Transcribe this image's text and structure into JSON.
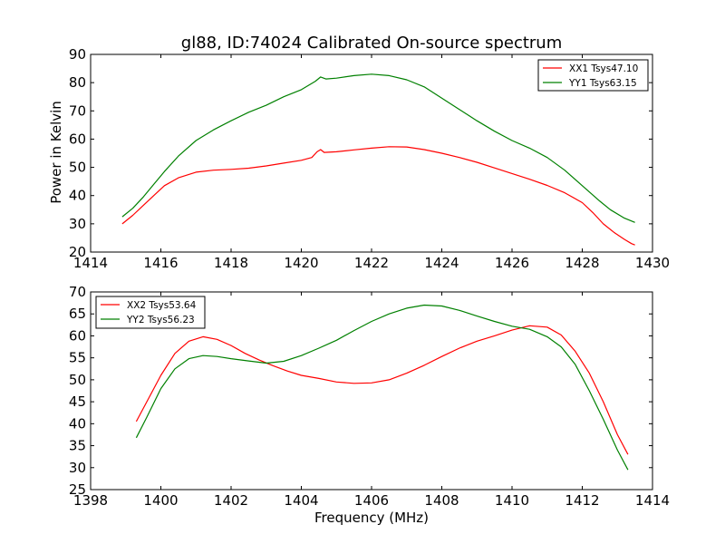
{
  "figure": {
    "title": "gl88, ID:74024 Calibrated On-source spectrum",
    "ylabel": "Power in Kelvin",
    "xlabel": "Frequency (MHz)"
  },
  "chart_data": [
    {
      "type": "line",
      "title": "gl88, ID:74024 Calibrated On-source spectrum",
      "ylabel": "Power in Kelvin",
      "xlim": [
        1414,
        1430
      ],
      "ylim": [
        20,
        90
      ],
      "xticks": [
        1414,
        1416,
        1418,
        1420,
        1422,
        1424,
        1426,
        1428,
        1430
      ],
      "yticks": [
        20,
        30,
        40,
        50,
        60,
        70,
        80,
        90
      ],
      "grid": false,
      "legend": "top-right",
      "series": [
        {
          "name": "XX1 Tsys47.10",
          "color": "#ff0000",
          "points": [
            [
              1414.9,
              30
            ],
            [
              1415.2,
              33
            ],
            [
              1415.5,
              36.5
            ],
            [
              1415.8,
              40
            ],
            [
              1416.1,
              43.5
            ],
            [
              1416.5,
              46.3
            ],
            [
              1417,
              48.3
            ],
            [
              1417.5,
              49
            ],
            [
              1418,
              49.3
            ],
            [
              1418.5,
              49.7
            ],
            [
              1419,
              50.5
            ],
            [
              1419.5,
              51.5
            ],
            [
              1420,
              52.5
            ],
            [
              1420.3,
              53.5
            ],
            [
              1420.45,
              55.5
            ],
            [
              1420.55,
              56.3
            ],
            [
              1420.65,
              55.3
            ],
            [
              1421,
              55.5
            ],
            [
              1421.5,
              56.2
            ],
            [
              1422,
              56.8
            ],
            [
              1422.5,
              57.3
            ],
            [
              1423,
              57.2
            ],
            [
              1423.5,
              56.3
            ],
            [
              1424,
              55
            ],
            [
              1424.5,
              53.5
            ],
            [
              1425,
              51.8
            ],
            [
              1425.5,
              49.8
            ],
            [
              1426,
              47.8
            ],
            [
              1426.5,
              45.8
            ],
            [
              1427,
              43.6
            ],
            [
              1427.5,
              41
            ],
            [
              1428,
              37.5
            ],
            [
              1428.3,
              34
            ],
            [
              1428.6,
              30
            ],
            [
              1428.9,
              27
            ],
            [
              1429.2,
              24.5
            ],
            [
              1429.4,
              23
            ],
            [
              1429.5,
              22.5
            ]
          ]
        },
        {
          "name": "YY1 Tsys63.15",
          "color": "#008000",
          "points": [
            [
              1414.9,
              32.5
            ],
            [
              1415.2,
              35.5
            ],
            [
              1415.5,
              39.5
            ],
            [
              1415.8,
              44
            ],
            [
              1416.1,
              48.5
            ],
            [
              1416.5,
              54
            ],
            [
              1417,
              59.5
            ],
            [
              1417.5,
              63.3
            ],
            [
              1418,
              66.5
            ],
            [
              1418.5,
              69.5
            ],
            [
              1419,
              72
            ],
            [
              1419.5,
              75
            ],
            [
              1420,
              77.5
            ],
            [
              1420.4,
              80.5
            ],
            [
              1420.55,
              82
            ],
            [
              1420.7,
              81.3
            ],
            [
              1421,
              81.6
            ],
            [
              1421.5,
              82.5
            ],
            [
              1422,
              83
            ],
            [
              1422.5,
              82.5
            ],
            [
              1423,
              81
            ],
            [
              1423.5,
              78.5
            ],
            [
              1424,
              74.5
            ],
            [
              1424.5,
              70.5
            ],
            [
              1425,
              66.5
            ],
            [
              1425.5,
              62.8
            ],
            [
              1426,
              59.5
            ],
            [
              1426.5,
              56.8
            ],
            [
              1427,
              53.5
            ],
            [
              1427.5,
              49
            ],
            [
              1428,
              43.5
            ],
            [
              1428.5,
              38
            ],
            [
              1428.8,
              35
            ],
            [
              1429.2,
              32
            ],
            [
              1429.5,
              30.5
            ]
          ]
        }
      ]
    },
    {
      "type": "line",
      "xlabel": "Frequency (MHz)",
      "xlim": [
        1398,
        1414
      ],
      "ylim": [
        25,
        70
      ],
      "xticks": [
        1398,
        1400,
        1402,
        1404,
        1406,
        1408,
        1410,
        1412,
        1414
      ],
      "yticks": [
        25,
        30,
        35,
        40,
        45,
        50,
        55,
        60,
        65,
        70
      ],
      "grid": false,
      "legend": "top-left",
      "series": [
        {
          "name": "XX2 Tsys53.64",
          "color": "#ff0000",
          "points": [
            [
              1399.3,
              40.5
            ],
            [
              1399.6,
              45
            ],
            [
              1400,
              51
            ],
            [
              1400.4,
              56
            ],
            [
              1400.8,
              58.8
            ],
            [
              1401.2,
              59.8
            ],
            [
              1401.6,
              59.2
            ],
            [
              1402,
              57.8
            ],
            [
              1402.4,
              56
            ],
            [
              1402.8,
              54.5
            ],
            [
              1403.2,
              53.2
            ],
            [
              1403.6,
              52
            ],
            [
              1404,
              51
            ],
            [
              1404.5,
              50.3
            ],
            [
              1405,
              49.5
            ],
            [
              1405.5,
              49.2
            ],
            [
              1406,
              49.3
            ],
            [
              1406.5,
              50
            ],
            [
              1407,
              51.5
            ],
            [
              1407.5,
              53.3
            ],
            [
              1408,
              55.3
            ],
            [
              1408.5,
              57.2
            ],
            [
              1409,
              58.8
            ],
            [
              1409.5,
              60
            ],
            [
              1410,
              61.3
            ],
            [
              1410.5,
              62.3
            ],
            [
              1411,
              62
            ],
            [
              1411.4,
              60.2
            ],
            [
              1411.8,
              56.5
            ],
            [
              1412.2,
              51.5
            ],
            [
              1412.6,
              45
            ],
            [
              1413,
              37.5
            ],
            [
              1413.3,
              33
            ]
          ]
        },
        {
          "name": "YY2 Tsys56.23",
          "color": "#008000",
          "points": [
            [
              1399.3,
              36.8
            ],
            [
              1399.6,
              41.5
            ],
            [
              1400,
              48
            ],
            [
              1400.4,
              52.5
            ],
            [
              1400.8,
              54.8
            ],
            [
              1401.2,
              55.5
            ],
            [
              1401.6,
              55.3
            ],
            [
              1402,
              54.8
            ],
            [
              1402.5,
              54.3
            ],
            [
              1403,
              53.8
            ],
            [
              1403.5,
              54.2
            ],
            [
              1404,
              55.5
            ],
            [
              1404.5,
              57.2
            ],
            [
              1405,
              59
            ],
            [
              1405.5,
              61.2
            ],
            [
              1406,
              63.3
            ],
            [
              1406.5,
              65
            ],
            [
              1407,
              66.3
            ],
            [
              1407.5,
              67
            ],
            [
              1408,
              66.8
            ],
            [
              1408.5,
              65.8
            ],
            [
              1409,
              64.5
            ],
            [
              1409.5,
              63.3
            ],
            [
              1410,
              62.2
            ],
            [
              1410.5,
              61.5
            ],
            [
              1411,
              59.8
            ],
            [
              1411.4,
              57.5
            ],
            [
              1411.8,
              53.5
            ],
            [
              1412.2,
              47.5
            ],
            [
              1412.6,
              41
            ],
            [
              1413,
              34
            ],
            [
              1413.3,
              29.5
            ]
          ]
        }
      ]
    }
  ]
}
